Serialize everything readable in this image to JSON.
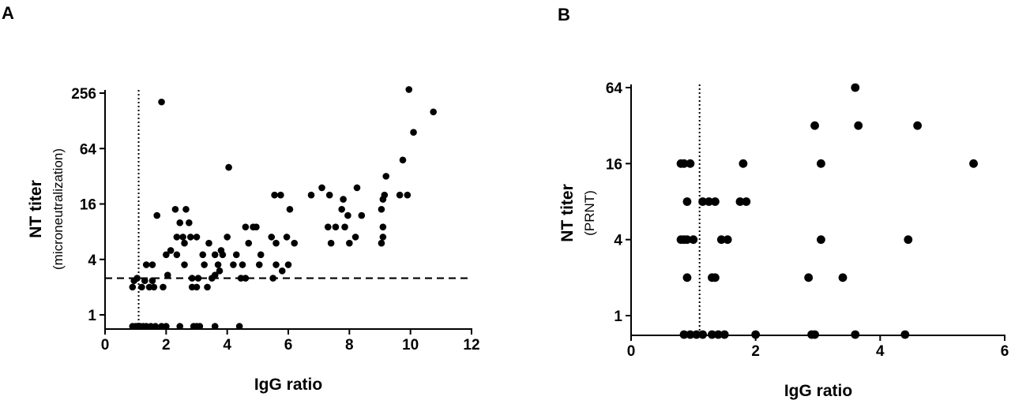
{
  "chart_data": [
    {
      "type": "scatter",
      "panel_label": "A",
      "xlabel": "IgG ratio",
      "ylabel": "NT titer",
      "ylabel_sub": "(microneutralization)",
      "x_scale": "linear",
      "y_scale": "log2",
      "xlim": [
        0,
        12
      ],
      "ylim": [
        0.75,
        300
      ],
      "x_ticks": [
        0,
        2,
        4,
        6,
        8,
        10,
        12
      ],
      "x_tick_labels": [
        "0",
        "2",
        "4",
        "6",
        "8",
        "10",
        "12"
      ],
      "y_ticks": [
        1,
        4,
        16,
        64,
        256
      ],
      "y_tick_labels": [
        "1",
        "4",
        "16",
        "64",
        "256"
      ],
      "reference_lines": [
        {
          "orientation": "vertical",
          "value": 1.1,
          "style": "dotted"
        },
        {
          "orientation": "horizontal",
          "value": 2.5,
          "style": "dashed"
        }
      ],
      "grid": false,
      "color": "#000000",
      "points": [
        [
          0.9,
          0.75
        ],
        [
          1.0,
          0.75
        ],
        [
          1.05,
          0.75
        ],
        [
          1.15,
          0.75
        ],
        [
          1.25,
          0.75
        ],
        [
          1.35,
          0.75
        ],
        [
          1.5,
          0.75
        ],
        [
          1.65,
          0.75
        ],
        [
          1.85,
          0.75
        ],
        [
          2.0,
          0.75
        ],
        [
          2.45,
          0.75
        ],
        [
          2.9,
          0.75
        ],
        [
          3.0,
          0.75
        ],
        [
          3.1,
          0.75
        ],
        [
          3.6,
          0.75
        ],
        [
          4.4,
          0.75
        ],
        [
          0.9,
          2
        ],
        [
          1.2,
          2
        ],
        [
          1.45,
          2
        ],
        [
          1.6,
          2
        ],
        [
          1.9,
          2
        ],
        [
          2.85,
          2
        ],
        [
          3.0,
          2
        ],
        [
          3.35,
          2
        ],
        [
          0.95,
          2.35
        ],
        [
          1.3,
          2.35
        ],
        [
          1.55,
          2.35
        ],
        [
          1.05,
          2.5
        ],
        [
          2.05,
          2.7
        ],
        [
          2.85,
          2.5
        ],
        [
          3.05,
          2.5
        ],
        [
          3.5,
          2.5
        ],
        [
          3.6,
          2.7
        ],
        [
          4.45,
          2.5
        ],
        [
          4.6,
          2.5
        ],
        [
          5.5,
          2.5
        ],
        [
          1.35,
          3.5
        ],
        [
          1.55,
          3.5
        ],
        [
          2.6,
          3.5
        ],
        [
          3.25,
          3.5
        ],
        [
          3.7,
          3.5
        ],
        [
          4.2,
          3.5
        ],
        [
          4.5,
          3.5
        ],
        [
          5.05,
          3.5
        ],
        [
          5.6,
          3.5
        ],
        [
          6.0,
          3.5
        ],
        [
          3.75,
          3
        ],
        [
          5.8,
          3
        ],
        [
          2.0,
          4.5
        ],
        [
          2.35,
          4.5
        ],
        [
          3.2,
          4.5
        ],
        [
          3.6,
          4.5
        ],
        [
          3.85,
          4.5
        ],
        [
          4.3,
          4.5
        ],
        [
          5.1,
          4.5
        ],
        [
          2.15,
          5
        ],
        [
          2.6,
          6
        ],
        [
          3.4,
          6
        ],
        [
          4.0,
          7
        ],
        [
          4.7,
          6
        ],
        [
          5.6,
          6
        ],
        [
          6.2,
          6
        ],
        [
          2.35,
          7
        ],
        [
          2.55,
          7
        ],
        [
          2.8,
          7
        ],
        [
          3.0,
          7
        ],
        [
          3.8,
          5
        ],
        [
          5.45,
          7
        ],
        [
          5.95,
          7
        ],
        [
          7.4,
          6
        ],
        [
          8.0,
          6
        ],
        [
          4.6,
          9
        ],
        [
          4.85,
          9
        ],
        [
          4.95,
          9
        ],
        [
          7.3,
          9
        ],
        [
          7.55,
          9
        ],
        [
          7.85,
          9
        ],
        [
          8.2,
          7
        ],
        [
          9.05,
          6
        ],
        [
          2.45,
          10
        ],
        [
          2.75,
          10
        ],
        [
          2.3,
          14
        ],
        [
          2.65,
          14
        ],
        [
          1.7,
          12
        ],
        [
          5.55,
          20
        ],
        [
          5.75,
          20
        ],
        [
          6.05,
          14
        ],
        [
          6.75,
          20
        ],
        [
          7.1,
          24
        ],
        [
          7.35,
          20
        ],
        [
          7.75,
          14
        ],
        [
          7.8,
          18
        ],
        [
          7.95,
          12
        ],
        [
          8.4,
          12
        ],
        [
          8.25,
          24
        ],
        [
          9.05,
          14
        ],
        [
          9.1,
          18
        ],
        [
          9.1,
          9
        ],
        [
          9.1,
          7
        ],
        [
          9.15,
          20
        ],
        [
          9.2,
          32
        ],
        [
          9.65,
          20
        ],
        [
          9.9,
          20
        ],
        [
          4.05,
          40
        ],
        [
          9.75,
          48
        ],
        [
          10.1,
          96
        ],
        [
          10.75,
          160
        ],
        [
          1.85,
          205
        ],
        [
          9.95,
          280
        ]
      ]
    },
    {
      "type": "scatter",
      "panel_label": "B",
      "xlabel": "IgG ratio",
      "ylabel": "NT titer",
      "ylabel_sub": "(PRNT)",
      "x_scale": "linear",
      "y_scale": "log2",
      "xlim": [
        0,
        6
      ],
      "ylim": [
        0.65,
        70
      ],
      "x_ticks": [
        0,
        2,
        4,
        6
      ],
      "x_tick_labels": [
        "0",
        "2",
        "4",
        "6"
      ],
      "y_ticks": [
        1,
        4,
        16,
        64
      ],
      "y_tick_labels": [
        "1",
        "4",
        "16",
        "64"
      ],
      "reference_lines": [
        {
          "orientation": "vertical",
          "value": 1.1,
          "style": "dotted"
        }
      ],
      "grid": false,
      "color": "#000000",
      "points": [
        [
          0.85,
          0.67
        ],
        [
          0.95,
          0.67
        ],
        [
          1.05,
          0.67
        ],
        [
          1.15,
          0.67
        ],
        [
          1.3,
          0.67
        ],
        [
          1.4,
          0.67
        ],
        [
          1.5,
          0.67
        ],
        [
          2.0,
          0.67
        ],
        [
          2.9,
          0.67
        ],
        [
          2.95,
          0.67
        ],
        [
          3.6,
          0.67
        ],
        [
          4.4,
          0.67
        ],
        [
          0.9,
          2
        ],
        [
          1.3,
          2
        ],
        [
          1.35,
          2
        ],
        [
          2.85,
          2
        ],
        [
          3.4,
          2
        ],
        [
          0.8,
          4
        ],
        [
          0.85,
          4
        ],
        [
          0.9,
          4
        ],
        [
          1.0,
          4
        ],
        [
          1.45,
          4
        ],
        [
          1.55,
          4
        ],
        [
          3.05,
          4
        ],
        [
          4.45,
          4
        ],
        [
          0.9,
          8
        ],
        [
          1.15,
          8
        ],
        [
          1.25,
          8
        ],
        [
          1.35,
          8
        ],
        [
          1.75,
          8
        ],
        [
          1.85,
          8
        ],
        [
          0.8,
          16
        ],
        [
          0.85,
          16
        ],
        [
          0.95,
          16
        ],
        [
          1.8,
          16
        ],
        [
          3.05,
          16
        ],
        [
          5.5,
          16
        ],
        [
          2.95,
          32
        ],
        [
          3.65,
          32
        ],
        [
          4.6,
          32
        ],
        [
          3.6,
          64
        ]
      ]
    }
  ]
}
